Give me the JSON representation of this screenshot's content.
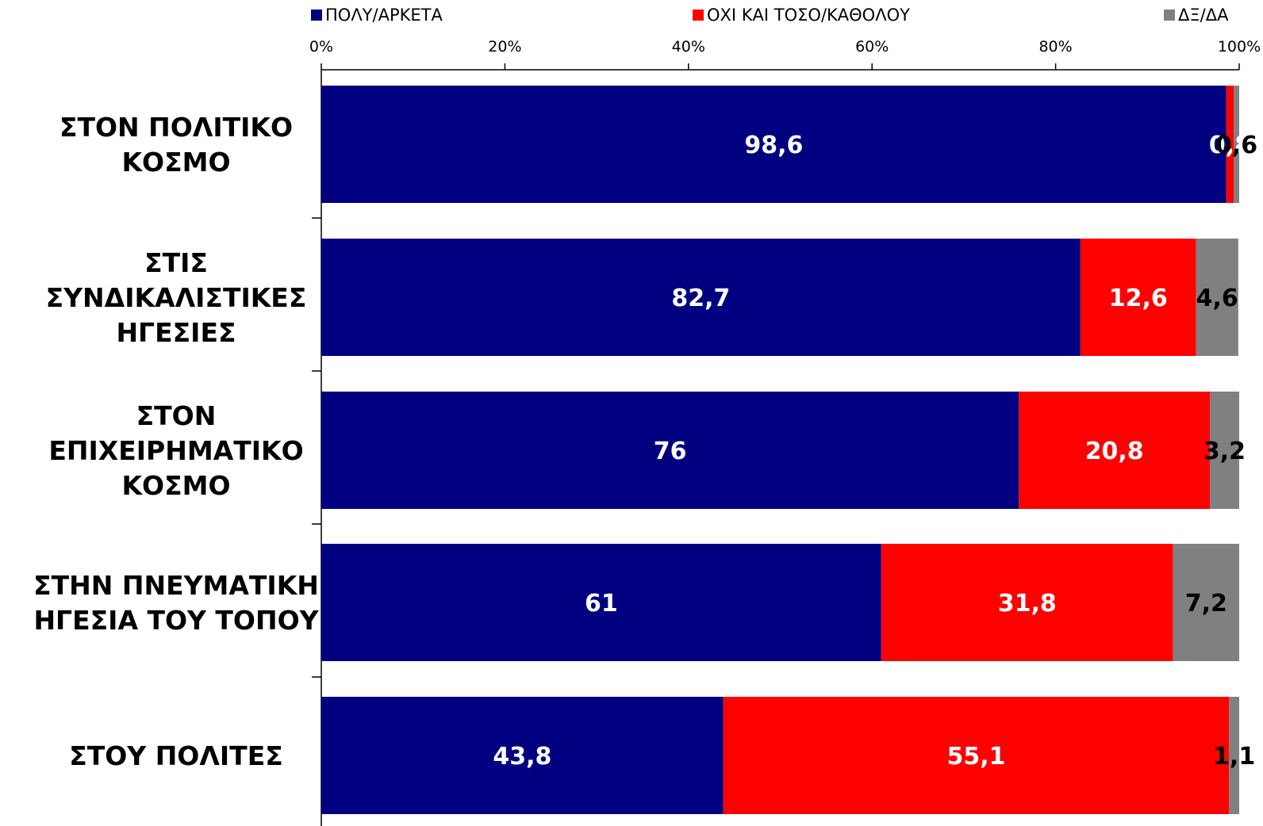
{
  "chart_data": {
    "type": "bar",
    "orientation": "horizontal",
    "stacked": "100%",
    "title": "",
    "xlabel": "",
    "ylabel": "",
    "xlim": [
      0,
      100
    ],
    "grid": false,
    "legend_position": "top",
    "x_ticks": [
      "0%",
      "20%",
      "40%",
      "60%",
      "80%",
      "100%"
    ],
    "categories": [
      [
        "ΣΤΟΝ ΠΟΛΙΤΙΚΟ",
        "ΚΟΣΜΟ"
      ],
      [
        "ΣΤΙΣ",
        "ΣΥΝΔΙΚΑΛΙΣΤΙΚΕΣ",
        "ΗΓΕΣΙΕΣ"
      ],
      [
        "ΣΤΟΝ",
        "ΕΠΙΧΕΙΡΗΜΑΤΙΚΟ",
        "ΚΟΣΜΟ"
      ],
      [
        "ΣΤΗΝ ΠΝΕΥΜΑΤΙΚΗ",
        "ΗΓΕΣΙΑ ΤΟΥ ΤΟΠΟΥ"
      ],
      [
        "ΣΤΟΥ ΠΟΛΙΤΕΣ"
      ]
    ],
    "series": [
      {
        "name": "ΠΟΛΥ/ΑΡΚΕΤΑ",
        "color": "#000080",
        "label_color": "#ffffff",
        "values": [
          98.6,
          82.7,
          76,
          61,
          43.8
        ],
        "labels": [
          "98,6",
          "82,7",
          "76",
          "61",
          "43,8"
        ]
      },
      {
        "name": "ΟΧΙ ΚΑΙ ΤΟΣΟ/ΚΑΘΟΛΟΥ",
        "color": "#ff0000",
        "label_color": "#ffffff",
        "values": [
          0.8,
          12.6,
          20.8,
          31.8,
          55.1
        ],
        "labels": [
          "0,8",
          "12,6",
          "20,8",
          "31,8",
          "55,1"
        ]
      },
      {
        "name": "ΔΞ/ΔΑ",
        "color": "#808080",
        "label_color": "#000000",
        "values": [
          0.6,
          4.6,
          3.2,
          7.2,
          1.1
        ],
        "labels": [
          "0,6",
          "4,6",
          "3,2",
          "7,2",
          "1,1"
        ]
      }
    ]
  }
}
